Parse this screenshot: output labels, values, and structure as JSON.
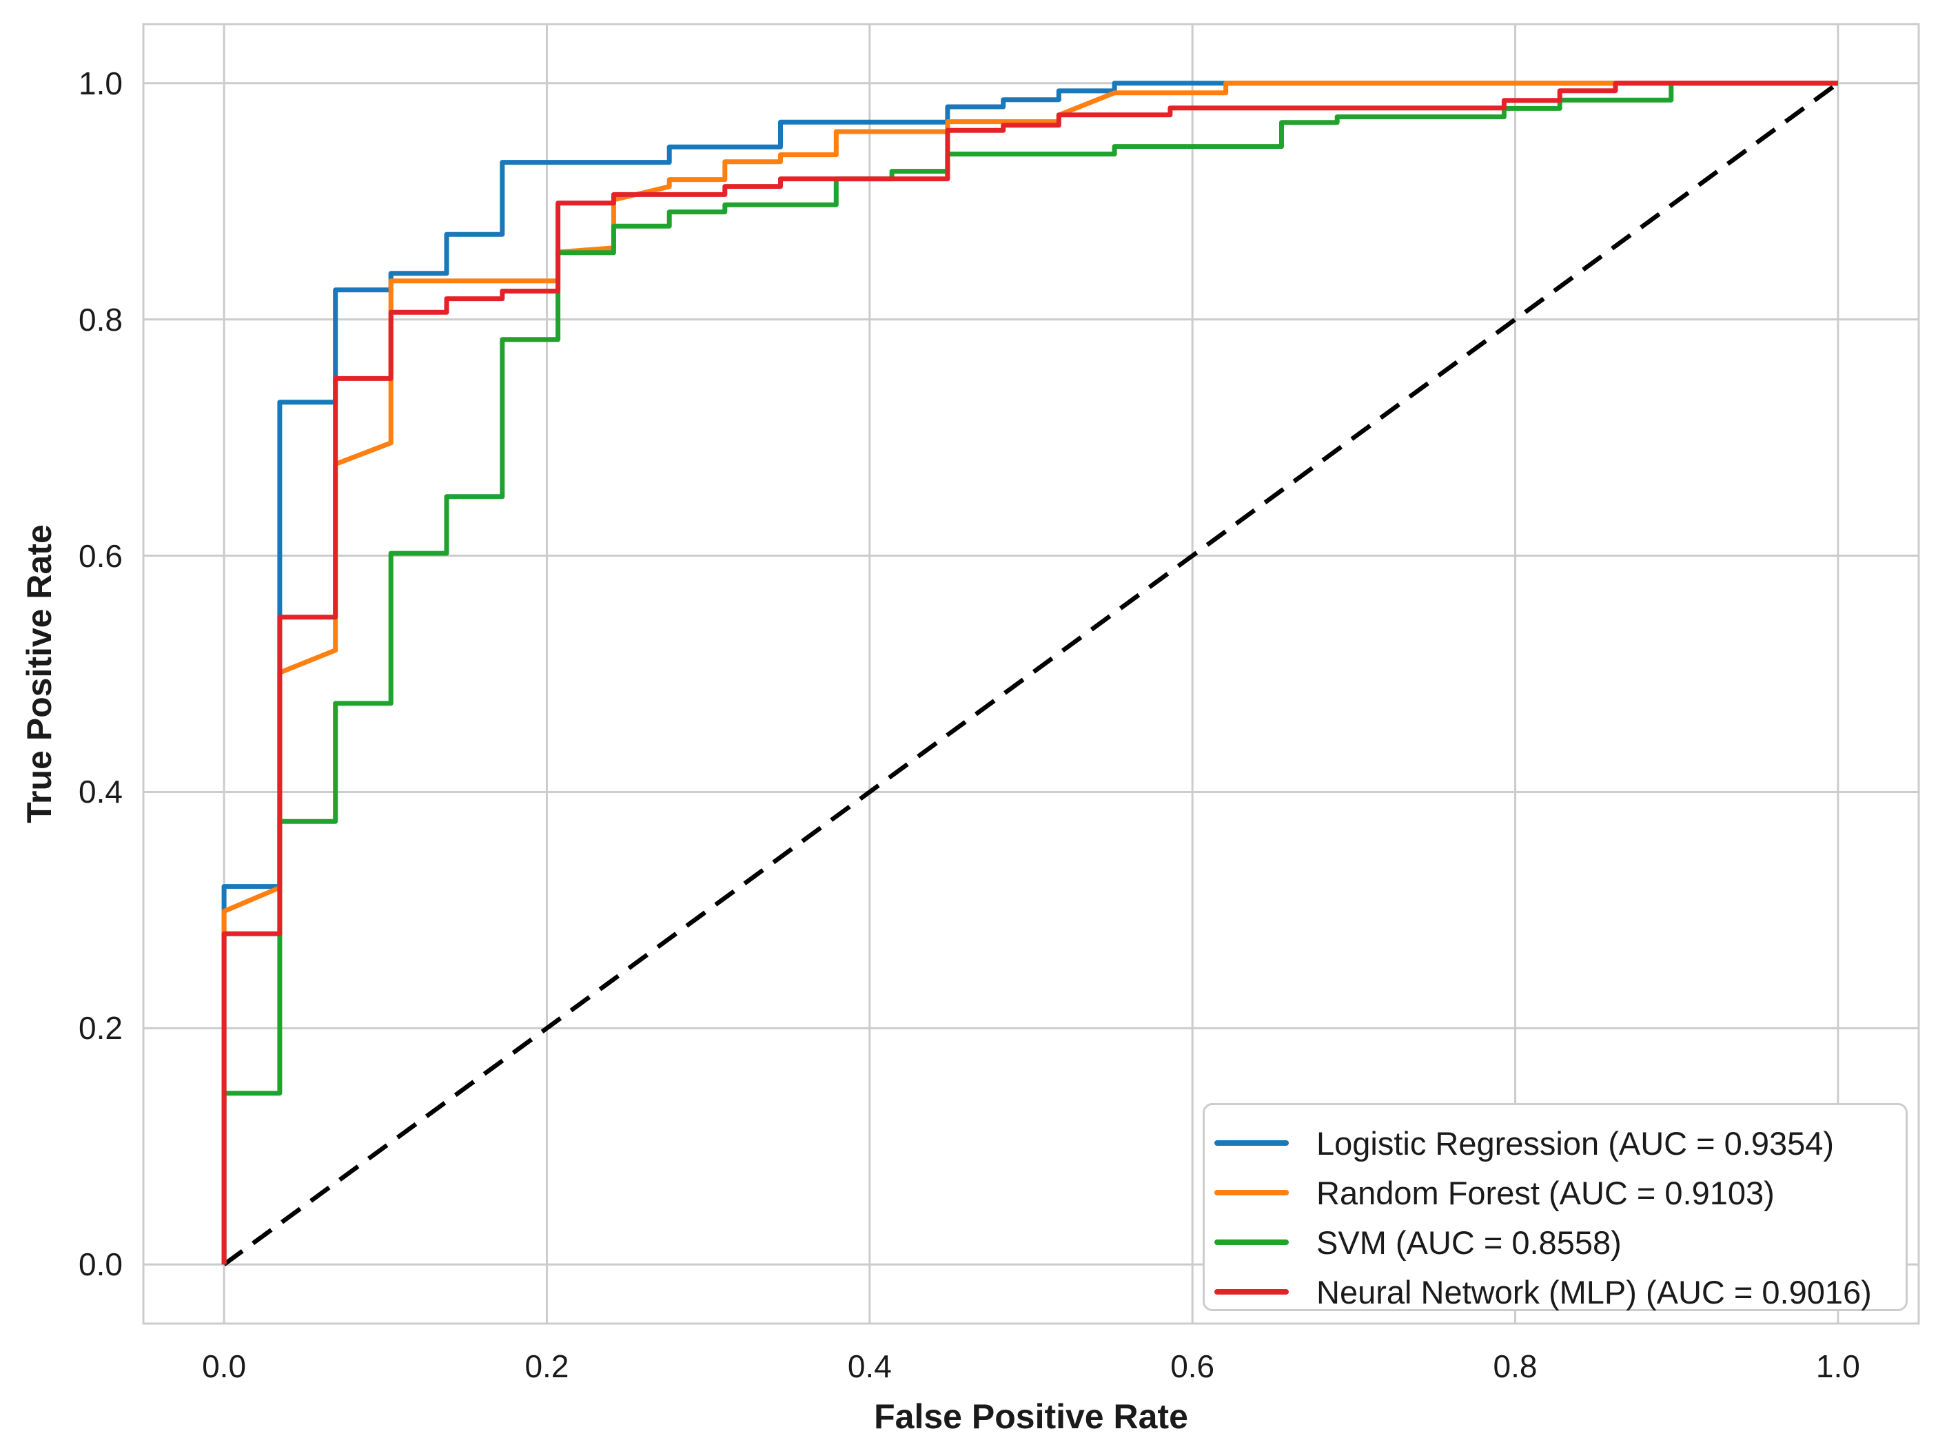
{
  "chart_data": {
    "type": "line",
    "subtype": "roc_step_curves",
    "title": "",
    "xlabel": "False Positive Rate",
    "ylabel": "True Positive Rate",
    "xlim": [
      -0.05,
      1.05
    ],
    "ylim": [
      -0.05,
      1.05
    ],
    "grid": true,
    "grid_color": "#cccccc",
    "background": "#ffffff",
    "text_color": "#1a1a1a",
    "xticks": {
      "values": [
        0.0,
        0.2,
        0.4,
        0.6,
        0.8,
        1.0
      ],
      "labels": [
        "0.0",
        "0.2",
        "0.4",
        "0.6",
        "0.8",
        "1.0"
      ]
    },
    "yticks": {
      "values": [
        0.0,
        0.2,
        0.4,
        0.6,
        0.8,
        1.0
      ],
      "labels": [
        "0.0",
        "0.2",
        "0.4",
        "0.6",
        "0.8",
        "1.0"
      ]
    },
    "reference_line": {
      "name": "chance-diagonal",
      "color": "#000000",
      "style": "dashed",
      "points": [
        [
          0,
          0
        ],
        [
          1,
          1
        ]
      ]
    },
    "legend": {
      "position": "lower right"
    },
    "series": [
      {
        "name": "logistic-regression",
        "label": "Logistic Regression (AUC = 0.9354)",
        "auc": 0.9354,
        "color": "#1878b9",
        "points": [
          [
            0,
            0
          ],
          [
            0,
            0.32
          ],
          [
            0.0345,
            0.32
          ],
          [
            0.0345,
            0.73
          ],
          [
            0.069,
            0.73
          ],
          [
            0.069,
            0.825
          ],
          [
            0.1034,
            0.825
          ],
          [
            0.1034,
            0.839
          ],
          [
            0.1379,
            0.839
          ],
          [
            0.1379,
            0.872
          ],
          [
            0.1724,
            0.872
          ],
          [
            0.1724,
            0.933
          ],
          [
            0.2759,
            0.933
          ],
          [
            0.2759,
            0.946
          ],
          [
            0.3448,
            0.946
          ],
          [
            0.3448,
            0.967
          ],
          [
            0.4483,
            0.967
          ],
          [
            0.4483,
            0.98
          ],
          [
            0.4828,
            0.98
          ],
          [
            0.4828,
            0.986
          ],
          [
            0.5172,
            0.986
          ],
          [
            0.5172,
            0.9935
          ],
          [
            0.5517,
            0.9935
          ],
          [
            0.5517,
            1
          ],
          [
            1,
            1
          ]
        ]
      },
      {
        "name": "random-forest",
        "label": "Random Forest (AUC = 0.9103)",
        "auc": 0.9103,
        "color": "#ff7f11",
        "points": [
          [
            0,
            0
          ],
          [
            0,
            0.299
          ],
          [
            0.0345,
            0.319
          ],
          [
            0.0345,
            0.501
          ],
          [
            0.069,
            0.52
          ],
          [
            0.069,
            0.6775
          ],
          [
            0.1034,
            0.6955
          ],
          [
            0.1034,
            0.8326
          ],
          [
            0.2069,
            0.8326
          ],
          [
            0.2069,
            0.857
          ],
          [
            0.2414,
            0.8605
          ],
          [
            0.2414,
            0.9013
          ],
          [
            0.2759,
            0.9125
          ],
          [
            0.2759,
            0.9184
          ],
          [
            0.3103,
            0.9184
          ],
          [
            0.3103,
            0.9335
          ],
          [
            0.3448,
            0.9335
          ],
          [
            0.3448,
            0.9394
          ],
          [
            0.3793,
            0.9394
          ],
          [
            0.3793,
            0.959
          ],
          [
            0.4483,
            0.959
          ],
          [
            0.4483,
            0.9674
          ],
          [
            0.5172,
            0.9674
          ],
          [
            0.5172,
            0.973
          ],
          [
            0.5517,
            0.9918
          ],
          [
            0.6207,
            0.9918
          ],
          [
            0.6207,
            1
          ],
          [
            1,
            1
          ]
        ]
      },
      {
        "name": "svm",
        "label": "SVM (AUC = 0.8558)",
        "auc": 0.8558,
        "color": "#20a32e",
        "points": [
          [
            0,
            0
          ],
          [
            0,
            0.145
          ],
          [
            0.0345,
            0.145
          ],
          [
            0.0345,
            0.375
          ],
          [
            0.069,
            0.375
          ],
          [
            0.069,
            0.475
          ],
          [
            0.1034,
            0.475
          ],
          [
            0.1034,
            0.602
          ],
          [
            0.1379,
            0.602
          ],
          [
            0.1379,
            0.65
          ],
          [
            0.1724,
            0.65
          ],
          [
            0.1724,
            0.783
          ],
          [
            0.2069,
            0.783
          ],
          [
            0.2069,
            0.8565
          ],
          [
            0.2414,
            0.8565
          ],
          [
            0.2414,
            0.879
          ],
          [
            0.2759,
            0.879
          ],
          [
            0.2759,
            0.891
          ],
          [
            0.3103,
            0.891
          ],
          [
            0.3103,
            0.897
          ],
          [
            0.3793,
            0.897
          ],
          [
            0.3793,
            0.919
          ],
          [
            0.4138,
            0.919
          ],
          [
            0.4138,
            0.9254
          ],
          [
            0.4483,
            0.9254
          ],
          [
            0.4483,
            0.94
          ],
          [
            0.5517,
            0.94
          ],
          [
            0.5517,
            0.9464
          ],
          [
            0.6552,
            0.9464
          ],
          [
            0.6552,
            0.9667
          ],
          [
            0.6897,
            0.9667
          ],
          [
            0.6897,
            0.9715
          ],
          [
            0.7931,
            0.9715
          ],
          [
            0.7931,
            0.9786
          ],
          [
            0.8276,
            0.9786
          ],
          [
            0.8276,
            0.9857
          ],
          [
            0.8966,
            0.9857
          ],
          [
            0.8966,
            1
          ],
          [
            1,
            1
          ]
        ]
      },
      {
        "name": "neural-network-mlp",
        "label": "Neural Network (MLP) (AUC = 0.9016)",
        "auc": 0.9016,
        "color": "#e42329",
        "points": [
          [
            0,
            0
          ],
          [
            0,
            0.28
          ],
          [
            0.0345,
            0.28
          ],
          [
            0.0345,
            0.548
          ],
          [
            0.069,
            0.548
          ],
          [
            0.069,
            0.75
          ],
          [
            0.1034,
            0.75
          ],
          [
            0.1034,
            0.806
          ],
          [
            0.1379,
            0.806
          ],
          [
            0.1379,
            0.8175
          ],
          [
            0.1724,
            0.8175
          ],
          [
            0.1724,
            0.824
          ],
          [
            0.2069,
            0.824
          ],
          [
            0.2069,
            0.8985
          ],
          [
            0.2414,
            0.8985
          ],
          [
            0.2414,
            0.9057
          ],
          [
            0.3103,
            0.9057
          ],
          [
            0.3103,
            0.9126
          ],
          [
            0.3448,
            0.9126
          ],
          [
            0.3448,
            0.919
          ],
          [
            0.4483,
            0.919
          ],
          [
            0.4483,
            0.96
          ],
          [
            0.4828,
            0.96
          ],
          [
            0.4828,
            0.9644
          ],
          [
            0.5172,
            0.9644
          ],
          [
            0.5172,
            0.9732
          ],
          [
            0.5862,
            0.9732
          ],
          [
            0.5862,
            0.979
          ],
          [
            0.7931,
            0.979
          ],
          [
            0.7931,
            0.9854
          ],
          [
            0.8276,
            0.9854
          ],
          [
            0.8276,
            0.9936
          ],
          [
            0.8621,
            0.9936
          ],
          [
            0.8621,
            1
          ],
          [
            1,
            1
          ]
        ]
      }
    ]
  }
}
